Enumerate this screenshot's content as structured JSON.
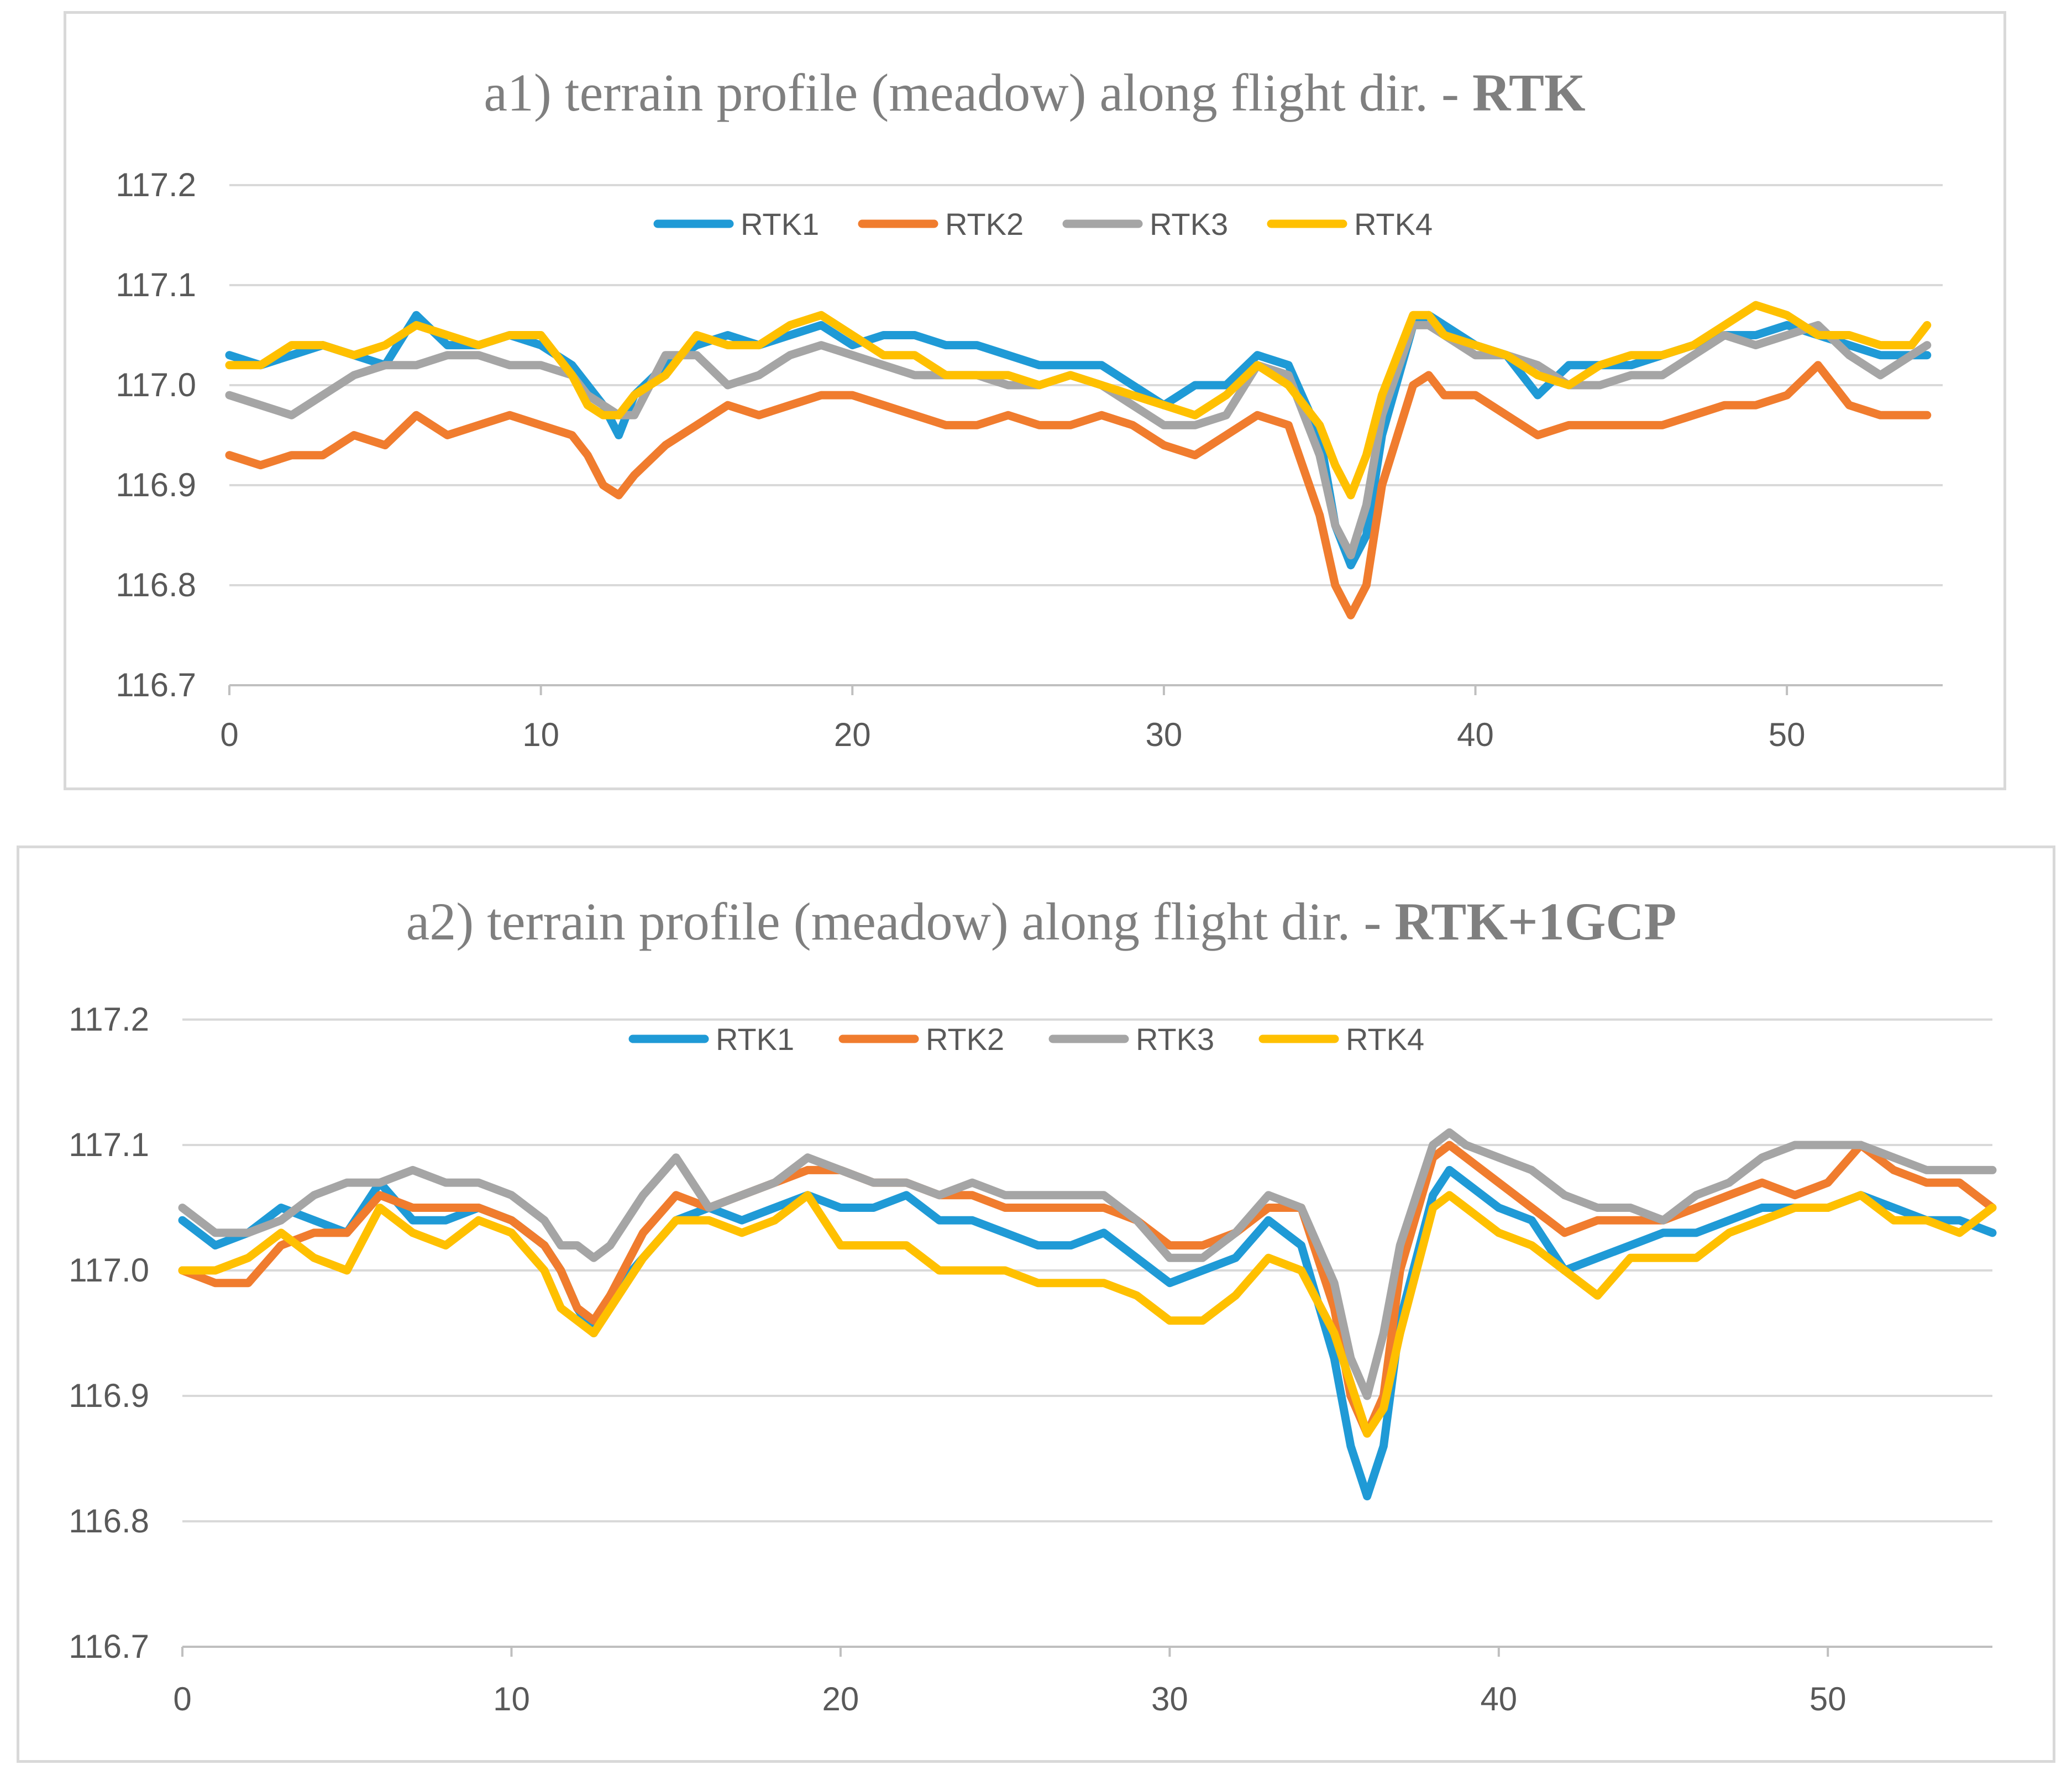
{
  "chart_data": [
    {
      "type": "line",
      "title": "a1) terrain profile (meadow) along flight dir. - ",
      "title_bold": "RTK",
      "xlabel": "",
      "ylabel": "",
      "xlim": [
        0,
        55
      ],
      "ylim": [
        116.7,
        117.2
      ],
      "x_ticks": [
        "0",
        "10",
        "20",
        "30",
        "40",
        "50"
      ],
      "y_ticks": [
        "116.7",
        "116.8",
        "116.9",
        "117.0",
        "117.1",
        "117.2"
      ],
      "legend_position": "top-center",
      "series": [
        {
          "name": "RTK1",
          "color": "#1f9ad6",
          "x": [
            0,
            1,
            2,
            3,
            4,
            5,
            6,
            7,
            8,
            9,
            10,
            11,
            11.5,
            12,
            12.5,
            13,
            14,
            15,
            16,
            17,
            18,
            19,
            20,
            21,
            22,
            23,
            24,
            25,
            26,
            27,
            28,
            29,
            30,
            31,
            32,
            33,
            34,
            35,
            35.5,
            36,
            36.5,
            37,
            38,
            38.5,
            39,
            40,
            41,
            42,
            43,
            44,
            45,
            46,
            47,
            48,
            49,
            50,
            51,
            52,
            53,
            54,
            54.5
          ],
          "values": [
            117.03,
            117.02,
            117.03,
            117.04,
            117.03,
            117.02,
            117.07,
            117.04,
            117.04,
            117.05,
            117.04,
            117.02,
            117.0,
            116.98,
            116.95,
            116.99,
            117.02,
            117.04,
            117.05,
            117.04,
            117.05,
            117.06,
            117.04,
            117.05,
            117.05,
            117.04,
            117.04,
            117.03,
            117.02,
            117.02,
            117.02,
            117.0,
            116.98,
            117.0,
            117.0,
            117.03,
            117.02,
            116.95,
            116.86,
            116.82,
            116.85,
            116.95,
            117.06,
            117.07,
            117.06,
            117.04,
            117.03,
            116.99,
            117.02,
            117.02,
            117.02,
            117.03,
            117.04,
            117.05,
            117.05,
            117.06,
            117.05,
            117.04,
            117.03,
            117.03,
            117.03
          ]
        },
        {
          "name": "RTK2",
          "color": "#f07c2e",
          "x": [
            0,
            1,
            2,
            3,
            4,
            5,
            6,
            7,
            8,
            9,
            10,
            11,
            11.5,
            12,
            12.5,
            13,
            14,
            15,
            16,
            17,
            18,
            19,
            20,
            21,
            22,
            23,
            24,
            25,
            26,
            27,
            28,
            29,
            30,
            31,
            32,
            33,
            34,
            35,
            35.5,
            36,
            36.5,
            37,
            38,
            38.5,
            39,
            40,
            41,
            42,
            43,
            44,
            45,
            46,
            47,
            48,
            49,
            50,
            51,
            52,
            53,
            54,
            54.5
          ],
          "values": [
            116.93,
            116.92,
            116.93,
            116.93,
            116.95,
            116.94,
            116.97,
            116.95,
            116.96,
            116.97,
            116.96,
            116.95,
            116.93,
            116.9,
            116.89,
            116.91,
            116.94,
            116.96,
            116.98,
            116.97,
            116.98,
            116.99,
            116.99,
            116.98,
            116.97,
            116.96,
            116.96,
            116.97,
            116.96,
            116.96,
            116.97,
            116.96,
            116.94,
            116.93,
            116.95,
            116.97,
            116.96,
            116.87,
            116.8,
            116.77,
            116.8,
            116.9,
            117.0,
            117.01,
            116.99,
            116.99,
            116.97,
            116.95,
            116.96,
            116.96,
            116.96,
            116.96,
            116.97,
            116.98,
            116.98,
            116.99,
            117.02,
            116.98,
            116.97,
            116.97,
            116.97
          ]
        },
        {
          "name": "RTK3",
          "color": "#a5a5a5",
          "x": [
            0,
            1,
            2,
            3,
            4,
            5,
            6,
            7,
            8,
            9,
            10,
            11,
            11.5,
            12,
            12.5,
            13,
            14,
            15,
            16,
            17,
            18,
            19,
            20,
            21,
            22,
            23,
            24,
            25,
            26,
            27,
            28,
            29,
            30,
            31,
            32,
            33,
            34,
            35,
            35.5,
            36,
            36.5,
            37,
            38,
            38.5,
            39,
            40,
            41,
            42,
            43,
            44,
            45,
            46,
            47,
            48,
            49,
            50,
            51,
            52,
            53,
            54,
            54.5
          ],
          "values": [
            116.99,
            116.98,
            116.97,
            116.99,
            117.01,
            117.02,
            117.02,
            117.03,
            117.03,
            117.02,
            117.02,
            117.01,
            116.99,
            116.98,
            116.97,
            116.97,
            117.03,
            117.03,
            117.0,
            117.01,
            117.03,
            117.04,
            117.03,
            117.02,
            117.01,
            117.01,
            117.01,
            117.0,
            117.0,
            117.01,
            117.0,
            116.98,
            116.96,
            116.96,
            116.97,
            117.02,
            117.01,
            116.93,
            116.86,
            116.83,
            116.88,
            116.97,
            117.06,
            117.06,
            117.05,
            117.03,
            117.03,
            117.02,
            117.0,
            117.0,
            117.01,
            117.01,
            117.03,
            117.05,
            117.04,
            117.05,
            117.06,
            117.03,
            117.01,
            117.03,
            117.04
          ]
        },
        {
          "name": "RTK4",
          "color": "#ffc000",
          "x": [
            0,
            1,
            2,
            3,
            4,
            5,
            6,
            7,
            8,
            9,
            10,
            11,
            11.5,
            12,
            12.5,
            13,
            14,
            15,
            16,
            17,
            18,
            19,
            20,
            21,
            22,
            23,
            24,
            25,
            26,
            27,
            28,
            29,
            30,
            31,
            32,
            33,
            34,
            35,
            35.5,
            36,
            36.5,
            37,
            38,
            38.5,
            39,
            40,
            41,
            42,
            43,
            44,
            45,
            46,
            47,
            48,
            49,
            50,
            51,
            52,
            53,
            54,
            54.5
          ],
          "values": [
            117.02,
            117.02,
            117.04,
            117.04,
            117.03,
            117.04,
            117.06,
            117.05,
            117.04,
            117.05,
            117.05,
            117.01,
            116.98,
            116.97,
            116.97,
            116.99,
            117.01,
            117.05,
            117.04,
            117.04,
            117.06,
            117.07,
            117.05,
            117.03,
            117.03,
            117.01,
            117.01,
            117.01,
            117.0,
            117.01,
            117.0,
            116.99,
            116.98,
            116.97,
            116.99,
            117.02,
            117.0,
            116.96,
            116.92,
            116.89,
            116.93,
            116.99,
            117.07,
            117.07,
            117.05,
            117.04,
            117.03,
            117.01,
            117.0,
            117.02,
            117.03,
            117.03,
            117.04,
            117.06,
            117.08,
            117.07,
            117.05,
            117.05,
            117.04,
            117.04,
            117.06
          ]
        }
      ]
    },
    {
      "type": "line",
      "title": "a2) terrain profile (meadow) along flight dir. - ",
      "title_bold": "RTK+1GCP",
      "xlabel": "",
      "ylabel": "",
      "xlim": [
        0,
        55
      ],
      "ylim": [
        116.7,
        117.2
      ],
      "x_ticks": [
        "0",
        "10",
        "20",
        "30",
        "40",
        "50"
      ],
      "y_ticks": [
        "116.7",
        "116.8",
        "116.9",
        "117.0",
        "117.1",
        "117.2"
      ],
      "legend_position": "top-center",
      "series": [
        {
          "name": "RTK1",
          "color": "#1f9ad6",
          "x": [
            0,
            1,
            2,
            3,
            4,
            5,
            6,
            7,
            8,
            9,
            10,
            11,
            11.5,
            12,
            12.5,
            13,
            14,
            15,
            16,
            17,
            18,
            19,
            20,
            21,
            22,
            23,
            24,
            25,
            26,
            27,
            28,
            29,
            30,
            31,
            32,
            33,
            34,
            35,
            35.5,
            36,
            36.5,
            37,
            38,
            38.5,
            39,
            40,
            41,
            42,
            43,
            44,
            45,
            46,
            47,
            48,
            49,
            50,
            51,
            52,
            53,
            54,
            55
          ],
          "values": [
            117.04,
            117.02,
            117.03,
            117.05,
            117.04,
            117.03,
            117.07,
            117.04,
            117.04,
            117.05,
            117.04,
            117.02,
            117.0,
            116.97,
            116.95,
            116.98,
            117.01,
            117.04,
            117.05,
            117.04,
            117.05,
            117.06,
            117.05,
            117.05,
            117.06,
            117.04,
            117.04,
            117.03,
            117.02,
            117.02,
            117.03,
            117.01,
            116.99,
            117.0,
            117.01,
            117.04,
            117.02,
            116.93,
            116.86,
            116.82,
            116.86,
            116.96,
            117.06,
            117.08,
            117.07,
            117.05,
            117.04,
            117.0,
            117.01,
            117.02,
            117.03,
            117.03,
            117.04,
            117.05,
            117.05,
            117.05,
            117.06,
            117.05,
            117.04,
            117.04,
            117.03
          ]
        },
        {
          "name": "RTK2",
          "color": "#f07c2e",
          "x": [
            0,
            1,
            2,
            3,
            4,
            5,
            6,
            7,
            8,
            9,
            10,
            11,
            11.5,
            12,
            12.5,
            13,
            14,
            15,
            16,
            17,
            18,
            19,
            20,
            21,
            22,
            23,
            24,
            25,
            26,
            27,
            28,
            29,
            30,
            31,
            32,
            33,
            34,
            35,
            35.5,
            36,
            36.5,
            37,
            38,
            38.5,
            39,
            40,
            41,
            42,
            43,
            44,
            45,
            46,
            47,
            48,
            49,
            50,
            51,
            52,
            53,
            54,
            55
          ],
          "values": [
            117.0,
            116.99,
            116.99,
            117.02,
            117.03,
            117.03,
            117.06,
            117.05,
            117.05,
            117.05,
            117.04,
            117.02,
            117.0,
            116.97,
            116.96,
            116.98,
            117.03,
            117.06,
            117.05,
            117.06,
            117.07,
            117.08,
            117.08,
            117.07,
            117.07,
            117.06,
            117.06,
            117.05,
            117.05,
            117.05,
            117.05,
            117.04,
            117.02,
            117.02,
            117.03,
            117.05,
            117.05,
            116.97,
            116.9,
            116.87,
            116.9,
            117.0,
            117.09,
            117.1,
            117.09,
            117.07,
            117.05,
            117.03,
            117.04,
            117.04,
            117.04,
            117.05,
            117.06,
            117.07,
            117.06,
            117.07,
            117.1,
            117.08,
            117.07,
            117.07,
            117.05
          ]
        },
        {
          "name": "RTK3",
          "color": "#a5a5a5",
          "x": [
            0,
            1,
            2,
            3,
            4,
            5,
            6,
            7,
            8,
            9,
            10,
            11,
            11.5,
            12,
            12.5,
            13,
            14,
            15,
            16,
            17,
            18,
            19,
            20,
            21,
            22,
            23,
            24,
            25,
            26,
            27,
            28,
            29,
            30,
            31,
            32,
            33,
            34,
            35,
            35.5,
            36,
            36.5,
            37,
            38,
            38.5,
            39,
            40,
            41,
            42,
            43,
            44,
            45,
            46,
            47,
            48,
            49,
            50,
            51,
            52,
            53,
            54,
            55
          ],
          "values": [
            117.05,
            117.03,
            117.03,
            117.04,
            117.06,
            117.07,
            117.07,
            117.08,
            117.07,
            117.07,
            117.06,
            117.04,
            117.02,
            117.02,
            117.01,
            117.02,
            117.06,
            117.09,
            117.05,
            117.06,
            117.07,
            117.09,
            117.08,
            117.07,
            117.07,
            117.06,
            117.07,
            117.06,
            117.06,
            117.06,
            117.06,
            117.04,
            117.01,
            117.01,
            117.03,
            117.06,
            117.05,
            116.99,
            116.93,
            116.9,
            116.95,
            117.02,
            117.1,
            117.11,
            117.1,
            117.09,
            117.08,
            117.06,
            117.05,
            117.05,
            117.04,
            117.06,
            117.07,
            117.09,
            117.1,
            117.1,
            117.1,
            117.09,
            117.08,
            117.08,
            117.08
          ]
        },
        {
          "name": "RTK4",
          "color": "#ffc000",
          "x": [
            0,
            1,
            2,
            3,
            4,
            5,
            6,
            7,
            8,
            9,
            10,
            11,
            11.5,
            12,
            12.5,
            13,
            14,
            15,
            16,
            17,
            18,
            19,
            20,
            21,
            22,
            23,
            24,
            25,
            26,
            27,
            28,
            29,
            30,
            31,
            32,
            33,
            34,
            35,
            35.5,
            36,
            36.5,
            37,
            38,
            38.5,
            39,
            40,
            41,
            42,
            43,
            44,
            45,
            46,
            47,
            48,
            49,
            50,
            51,
            52,
            53,
            54,
            55
          ],
          "values": [
            117.0,
            117.0,
            117.01,
            117.03,
            117.01,
            117.0,
            117.05,
            117.03,
            117.02,
            117.04,
            117.03,
            117.0,
            116.97,
            116.96,
            116.95,
            116.97,
            117.01,
            117.04,
            117.04,
            117.03,
            117.04,
            117.06,
            117.02,
            117.02,
            117.02,
            117.0,
            117.0,
            117.0,
            116.99,
            116.99,
            116.99,
            116.98,
            116.96,
            116.96,
            116.98,
            117.01,
            117.0,
            116.95,
            116.91,
            116.87,
            116.89,
            116.95,
            117.05,
            117.06,
            117.05,
            117.03,
            117.02,
            117.0,
            116.98,
            117.01,
            117.01,
            117.01,
            117.03,
            117.04,
            117.05,
            117.05,
            117.06,
            117.04,
            117.04,
            117.03,
            117.05
          ]
        }
      ]
    }
  ]
}
